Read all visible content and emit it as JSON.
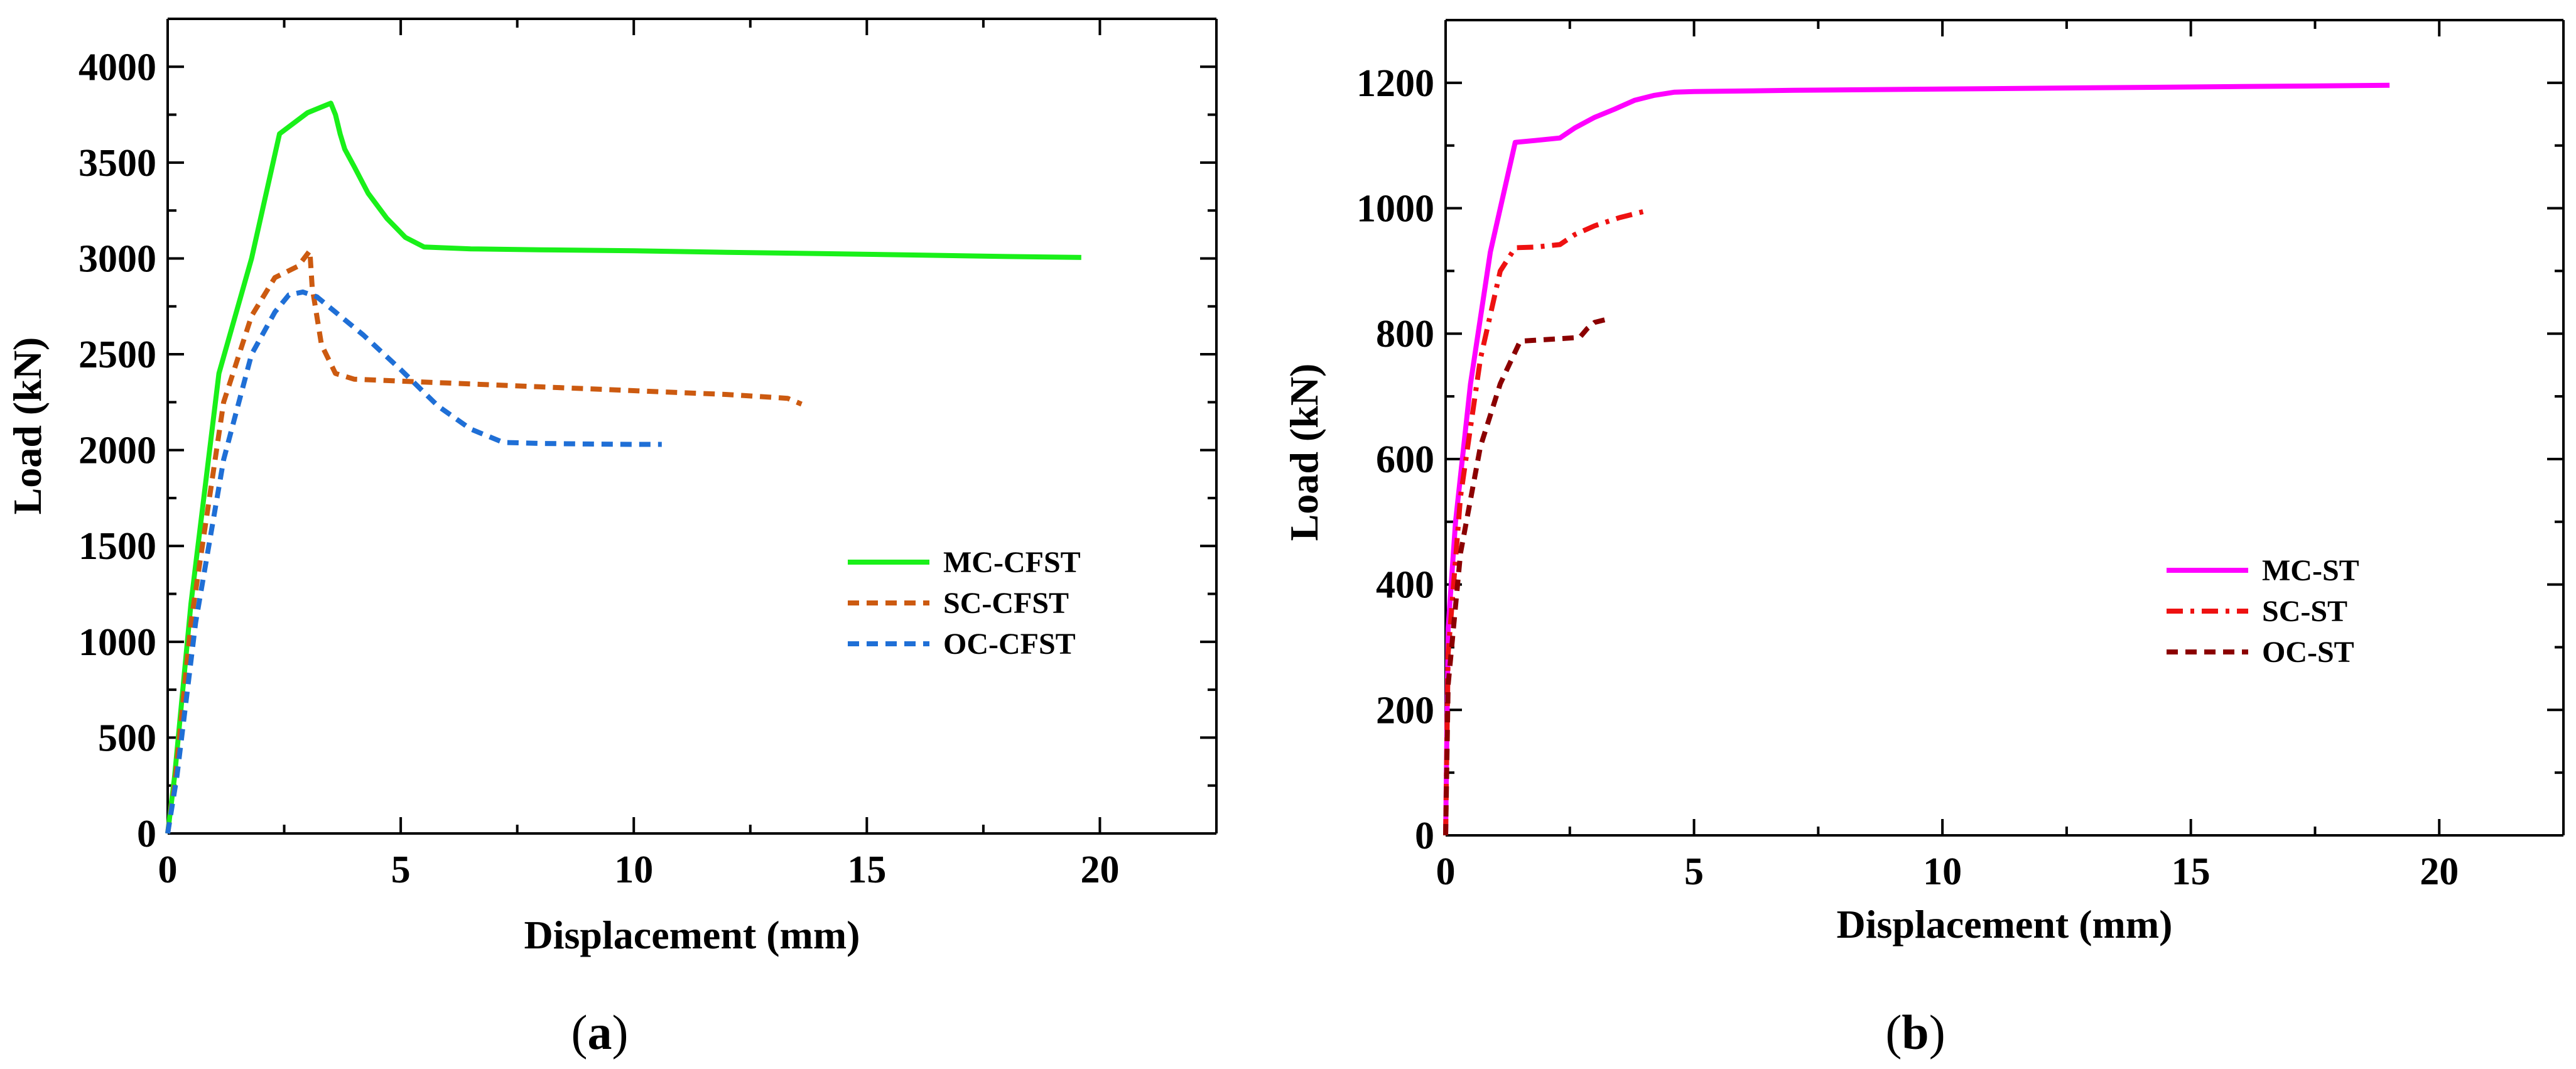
{
  "chart_data": [
    {
      "panel": "(a)",
      "panel_letter": "a",
      "type": "line",
      "title": "",
      "xlabel": "Displacement (mm)",
      "ylabel": "Load (kN)",
      "xlim": [
        0,
        22.5
      ],
      "ylim": [
        0,
        4250
      ],
      "xticks": [
        0,
        5,
        10,
        15,
        20
      ],
      "yticks": [
        0,
        500,
        1000,
        1500,
        2000,
        2500,
        3000,
        3500,
        4000
      ],
      "legend_position": "center-right",
      "series": [
        {
          "name": "MC-CFST",
          "color": "#19f019",
          "dash": "solid",
          "x": [
            0,
            0.15,
            0.5,
            1.1,
            1.8,
            2.4,
            3.0,
            3.5,
            3.6,
            3.7,
            3.8,
            4.0,
            4.3,
            4.7,
            5.1,
            5.5,
            6.5,
            8,
            10,
            12,
            14,
            16,
            18,
            19.6
          ],
          "y": [
            0,
            300,
            1200,
            2400,
            3000,
            3650,
            3760,
            3810,
            3750,
            3650,
            3570,
            3480,
            3340,
            3210,
            3110,
            3060,
            3050,
            3045,
            3040,
            3032,
            3025,
            3018,
            3010,
            3005
          ]
        },
        {
          "name": "SC-CFST",
          "color": "#cc5a10",
          "dash": "dashed",
          "x": [
            0,
            0.15,
            0.5,
            1.2,
            1.8,
            2.3,
            2.8,
            3.05,
            3.1,
            3.3,
            3.6,
            4.0,
            5,
            6,
            8,
            10,
            12,
            13.3,
            13.6
          ],
          "y": [
            0,
            250,
            1100,
            2250,
            2700,
            2900,
            2960,
            3040,
            2850,
            2550,
            2400,
            2370,
            2360,
            2350,
            2330,
            2310,
            2290,
            2270,
            2240
          ]
        },
        {
          "name": "OC-CFST",
          "color": "#1f6fd6",
          "dash": "dashed",
          "x": [
            0,
            0.2,
            0.6,
            1.2,
            1.8,
            2.3,
            2.6,
            2.9,
            3.2,
            3.6,
            4.2,
            5,
            5.8,
            6.5,
            7.2,
            8,
            9,
            10,
            10.6
          ],
          "y": [
            0,
            300,
            1100,
            1950,
            2500,
            2720,
            2810,
            2825,
            2800,
            2720,
            2600,
            2420,
            2230,
            2110,
            2040,
            2035,
            2032,
            2030,
            2030
          ]
        }
      ]
    },
    {
      "panel": "(b)",
      "panel_letter": "b",
      "type": "line",
      "title": "",
      "xlabel": "Displacement (mm)",
      "ylabel": "Load (kN)",
      "xlim": [
        0,
        22.5
      ],
      "ylim": [
        0,
        1300
      ],
      "xticks": [
        0,
        5,
        10,
        15,
        20
      ],
      "yticks": [
        0,
        200,
        400,
        600,
        800,
        1000,
        1200
      ],
      "legend_position": "center-right",
      "series": [
        {
          "name": "MC-ST",
          "color": "#ff00ff",
          "dash": "solid",
          "x": [
            0,
            0.05,
            0.2,
            0.5,
            0.9,
            1.4,
            1.8,
            2.3,
            2.6,
            3.0,
            3.4,
            3.8,
            4.2,
            4.6,
            5,
            7,
            10,
            13,
            16,
            19
          ],
          "y": [
            0,
            330,
            500,
            720,
            930,
            1105,
            1108,
            1112,
            1128,
            1145,
            1158,
            1172,
            1180,
            1185,
            1186,
            1188,
            1190,
            1192,
            1194,
            1196
          ]
        },
        {
          "name": "SC-ST",
          "color": "#ee1111",
          "dash": "dashdot",
          "x": [
            0,
            0.05,
            0.3,
            0.7,
            1.1,
            1.4,
            1.8,
            2.3,
            2.6,
            3.0,
            3.5,
            4.1
          ],
          "y": [
            0,
            290,
            540,
            760,
            900,
            937,
            938,
            942,
            958,
            972,
            985,
            997
          ]
        },
        {
          "name": "OC-ST",
          "color": "#8b0000",
          "dash": "dashed",
          "x": [
            0,
            0.05,
            0.3,
            0.7,
            1.1,
            1.5,
            1.9,
            2.3,
            2.7,
            2.85,
            3.0,
            3.2
          ],
          "y": [
            0,
            240,
            450,
            620,
            720,
            788,
            790,
            792,
            794,
            808,
            818,
            822
          ]
        }
      ]
    }
  ]
}
